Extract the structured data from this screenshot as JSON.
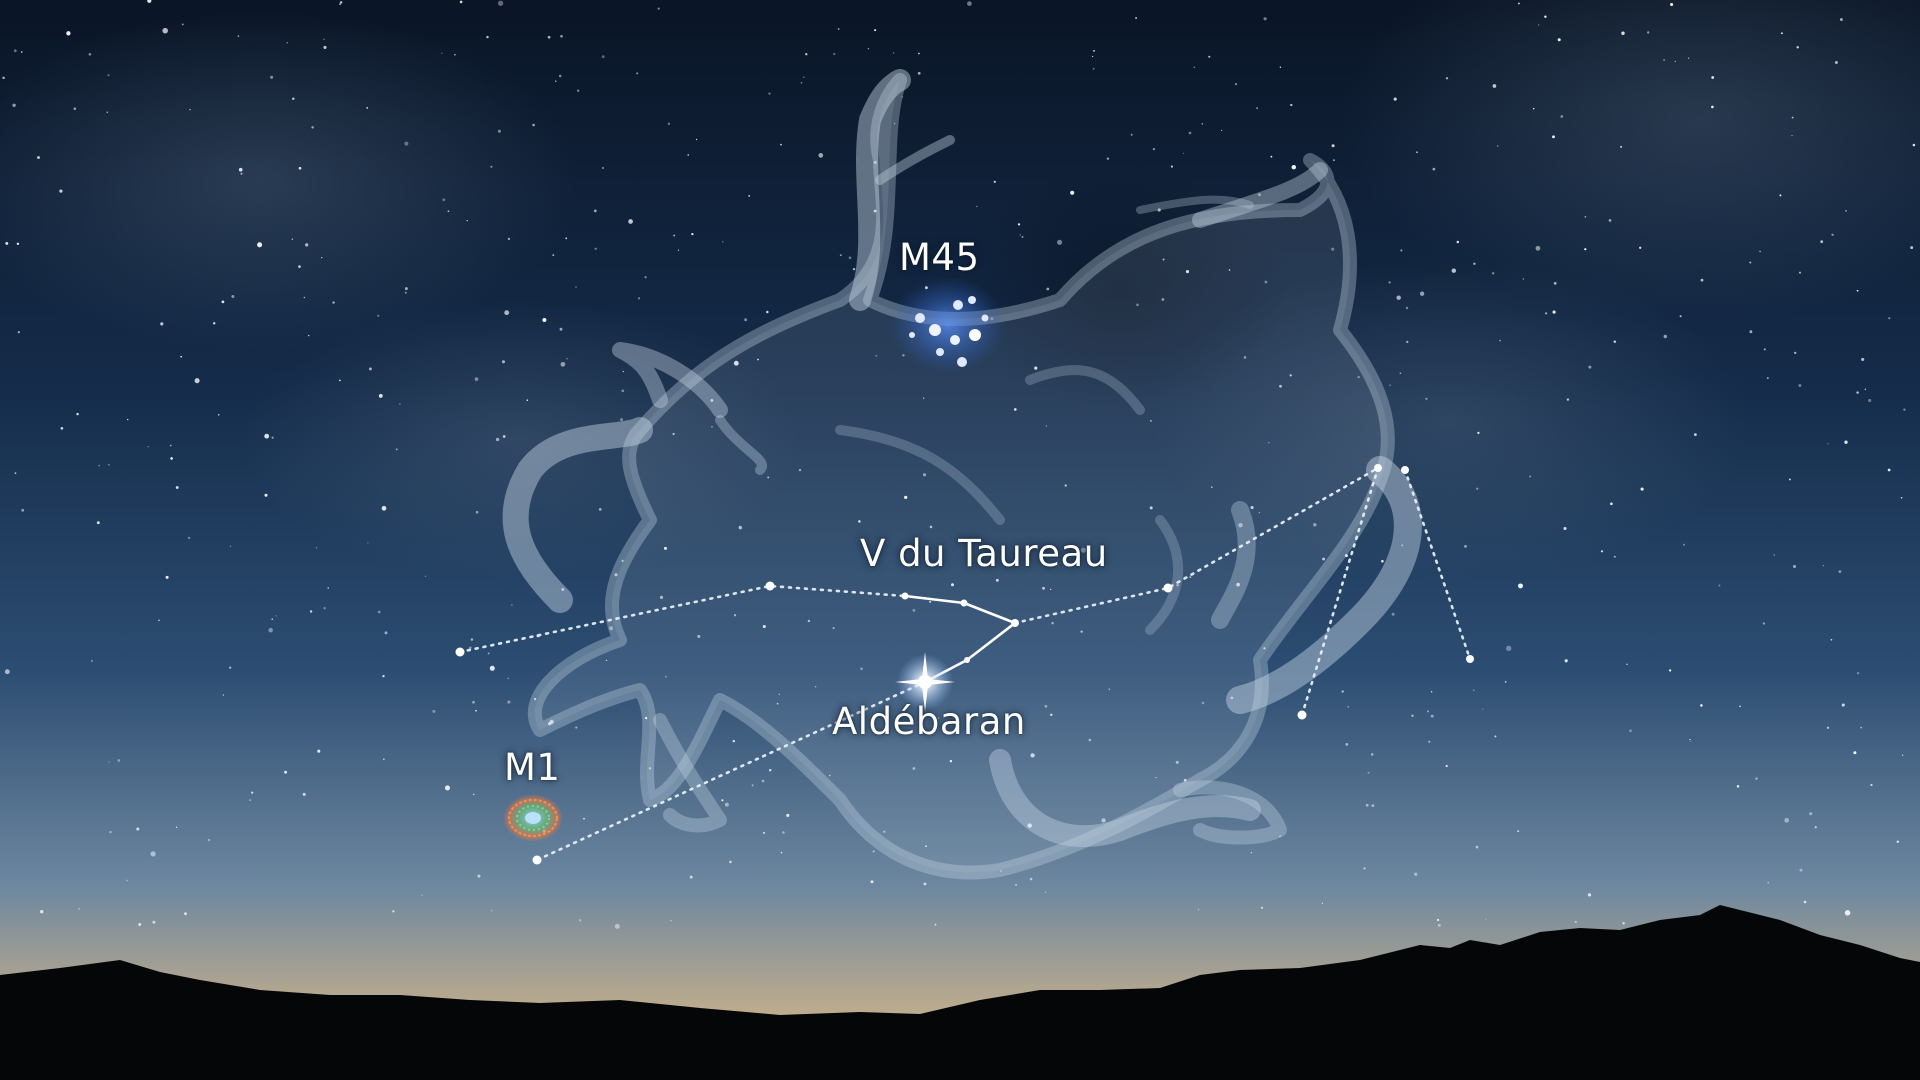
{
  "labels": {
    "m45": "M45",
    "v_taureau": "V du Taureau",
    "aldebaran": "Aldébaran",
    "m1": "M1"
  },
  "colors": {
    "sky_top": "#0a1526",
    "sky_mid": "#1d3a5e",
    "sky_horizon_blue": "#6d87a0",
    "horizon_glow": "#d8b98c",
    "mountains": "#050607",
    "constellation_lines": "#e6eef6",
    "bull_figure": "#c7d6e6",
    "pleiades": "#6fa3ff"
  },
  "objects": {
    "pleiades": "pleiades-cluster",
    "crab_nebula": "crab-nebula",
    "aldebaran_star": "bright-star-aldebaran"
  }
}
